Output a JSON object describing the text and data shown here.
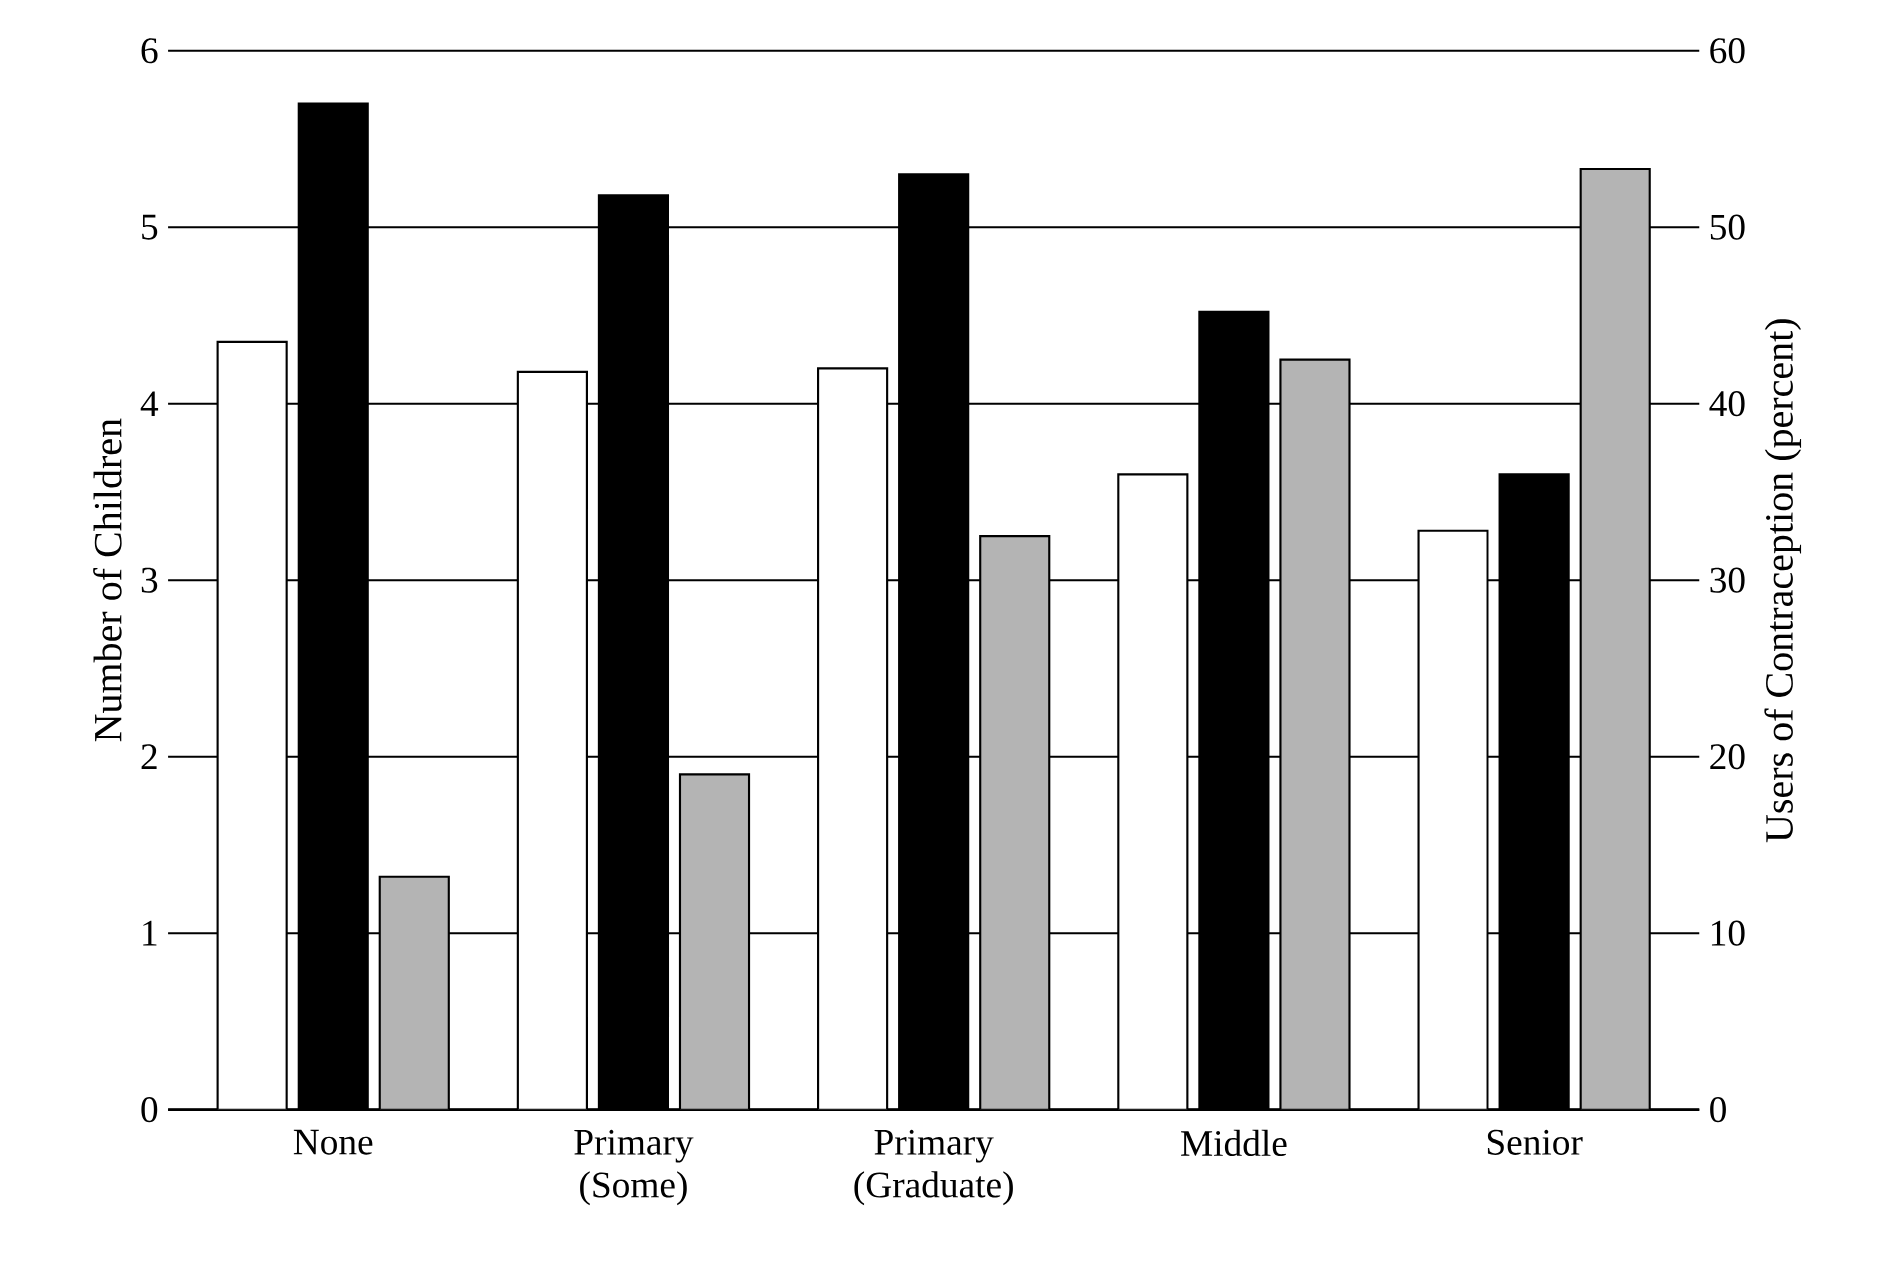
{
  "chart_data": {
    "type": "bar",
    "ylabel": "Number of Children",
    "y2label": "Users of Contraception (percent)",
    "categories": [
      "None",
      "Primary (Some)",
      "Primary (Graduate)",
      "Middle",
      "Senior"
    ],
    "series": [
      {
        "color": "#ffffff",
        "values": [
          4.35,
          4.18,
          4.2,
          3.6,
          3.28
        ]
      },
      {
        "color": "#000000",
        "values": [
          5.7,
          5.18,
          5.3,
          4.52,
          3.6
        ]
      },
      {
        "color": "#b4b4b4",
        "axis": "y2",
        "values": [
          13.2,
          19,
          32.5,
          42.5,
          53.3
        ]
      }
    ],
    "ylim": [
      0,
      6
    ],
    "yticks": [
      0,
      1,
      2,
      3,
      4,
      5,
      6
    ],
    "y2lim": [
      0,
      60
    ],
    "y2ticks": [
      0,
      10,
      20,
      30,
      40,
      50,
      60
    ],
    "grid": "y"
  }
}
